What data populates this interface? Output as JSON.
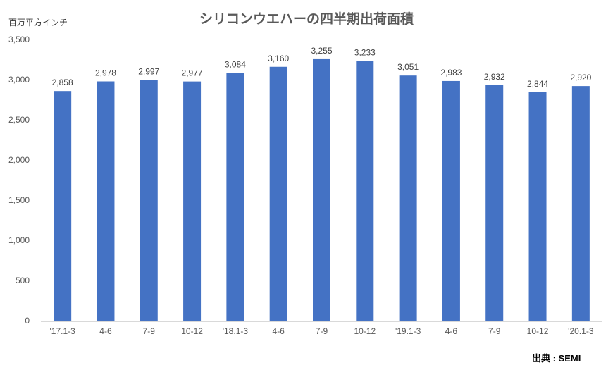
{
  "chart_data": {
    "type": "bar",
    "title": "シリコンウエハーの四半期出荷面積",
    "ylabel": "百万平方インチ",
    "xlabel": "",
    "categories": [
      "'17.1-3",
      "4-6",
      "7-9",
      "10-12",
      "'18.1-3",
      "4-6",
      "7-9",
      "10-12",
      "'19.1-3",
      "4-6",
      "7-9",
      "10-12",
      "'20.1-3"
    ],
    "values": [
      2858,
      2978,
      2997,
      2977,
      3084,
      3160,
      3255,
      3233,
      3051,
      2983,
      2932,
      2844,
      2920
    ],
    "ylim": [
      0,
      3500
    ],
    "yticks": [
      0,
      500,
      1000,
      1500,
      2000,
      2500,
      3000,
      3500
    ],
    "grid": false,
    "legend": "none",
    "bar_color": "#4472C4",
    "source": "出典 : SEMI"
  }
}
